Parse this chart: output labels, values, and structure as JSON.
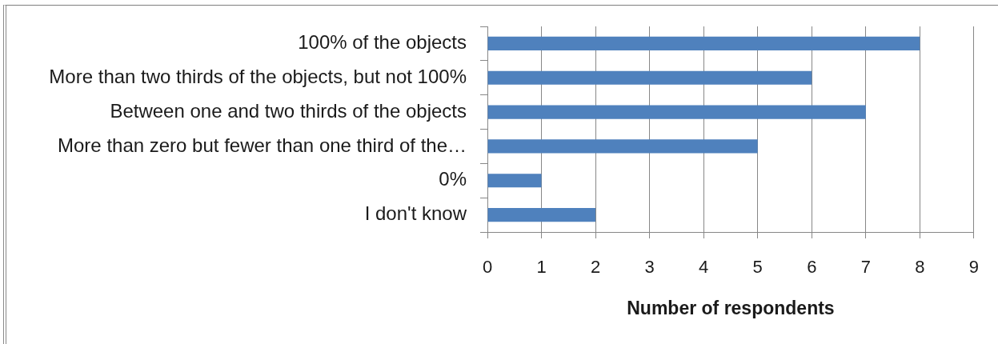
{
  "chart_data": {
    "type": "bar",
    "orientation": "horizontal",
    "categories": [
      "100% of the objects",
      "More than two thirds of the objects, but not 100%",
      "Between one and two thirds of the objects",
      "More than zero but fewer than one third of the…",
      "0%",
      "I don't know"
    ],
    "values": [
      8,
      6,
      7,
      5,
      1,
      2
    ],
    "color": "#4f81bd",
    "xlabel": "Number of respondents",
    "xlim": [
      0,
      9
    ],
    "xticks": [
      0,
      1,
      2,
      3,
      4,
      5,
      6,
      7,
      8,
      9
    ],
    "grid": "x"
  }
}
